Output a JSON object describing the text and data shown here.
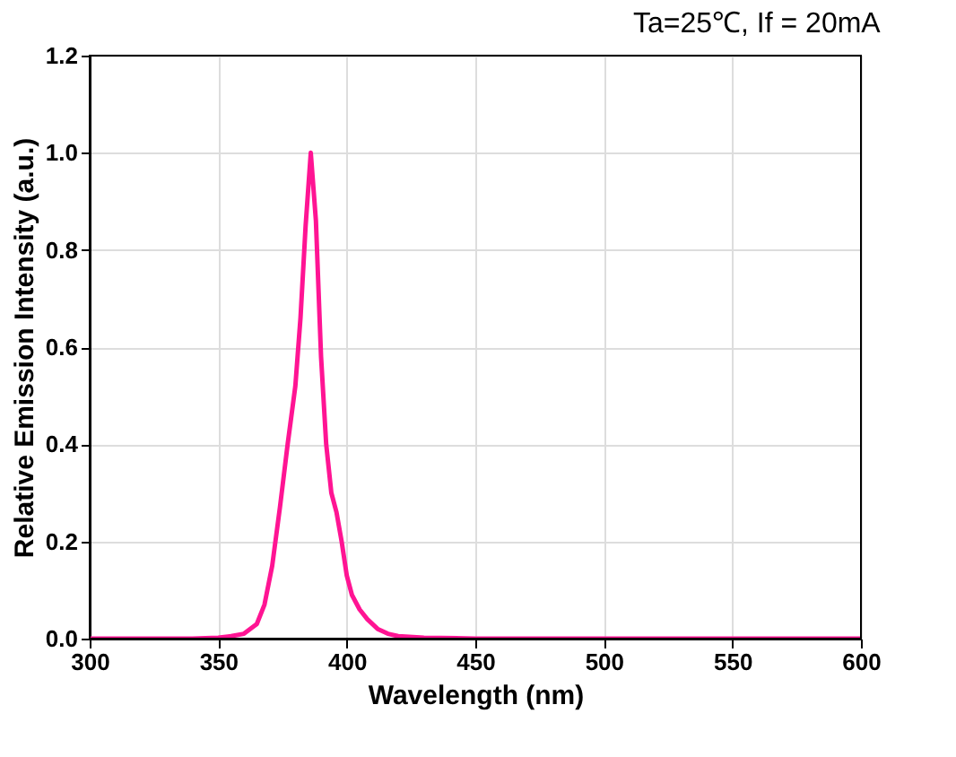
{
  "chart_data": {
    "type": "line",
    "title": "Ta=25℃, If = 20mA",
    "xlabel": "Wavelength (nm)",
    "ylabel": "Relative Emission Intensity (a.u.)",
    "x": [
      300,
      340,
      350,
      355,
      360,
      365,
      368,
      371,
      374,
      377,
      380,
      382,
      384,
      386,
      388,
      390,
      392,
      394,
      396,
      398,
      400,
      402,
      405,
      408,
      412,
      416,
      420,
      430,
      450,
      500,
      600
    ],
    "series": [
      {
        "color": "#ff1493",
        "values": [
          0,
          0,
          0.002,
          0.005,
          0.01,
          0.03,
          0.07,
          0.15,
          0.27,
          0.4,
          0.52,
          0.66,
          0.85,
          1.0,
          0.86,
          0.58,
          0.4,
          0.3,
          0.26,
          0.2,
          0.13,
          0.09,
          0.06,
          0.04,
          0.02,
          0.01,
          0.005,
          0.002,
          0,
          0,
          0
        ]
      }
    ],
    "xlim": [
      300,
      600
    ],
    "xticks": [
      300,
      350,
      400,
      450,
      500,
      550,
      600
    ],
    "ylim": [
      0,
      1.2
    ],
    "yticks": [
      {
        "value": 0,
        "label": "0.0"
      },
      {
        "value": 0.2,
        "label": "0.2"
      },
      {
        "value": 0.4,
        "label": "0.4"
      },
      {
        "value": 0.6,
        "label": "0.6"
      },
      {
        "value": 0.8,
        "label": "0.8"
      },
      {
        "value": 1.0,
        "label": "1.0"
      },
      {
        "value": 1.2,
        "label": "1.2"
      }
    ],
    "grid": true,
    "line_style": "solid",
    "marker": "none"
  }
}
